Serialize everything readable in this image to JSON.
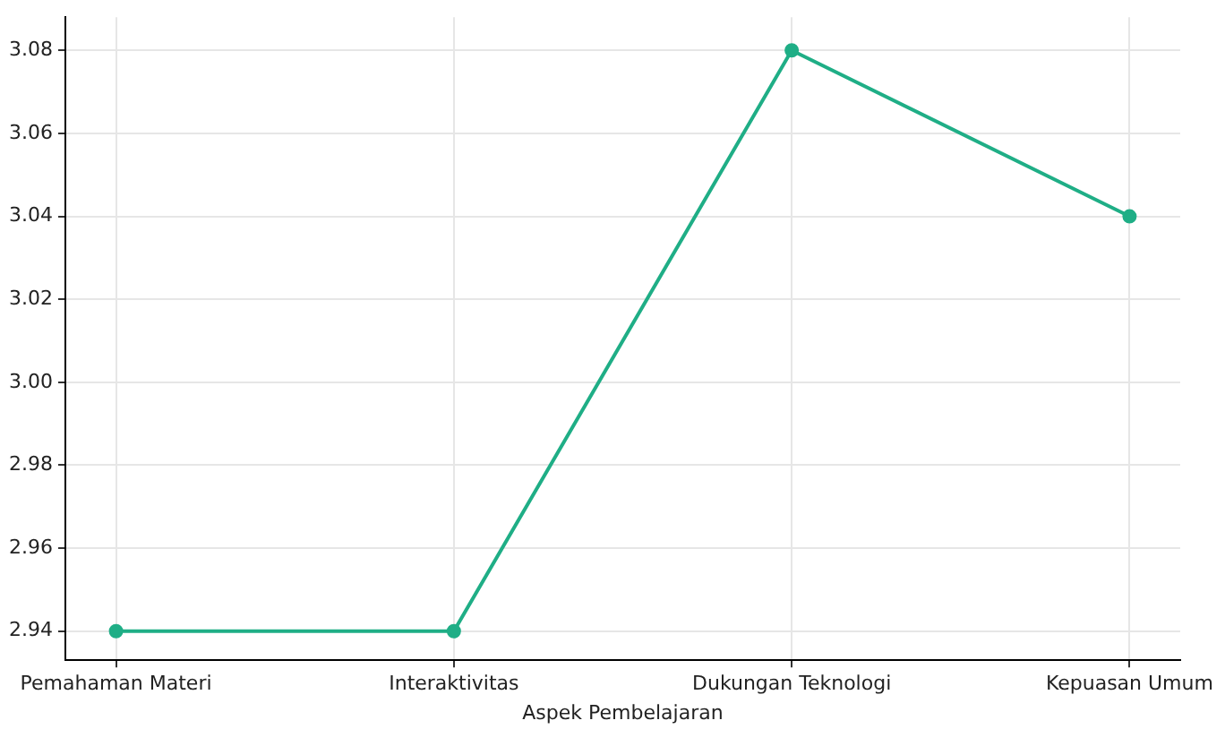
{
  "chart_data": {
    "type": "line",
    "xlabel": "Aspek Pembelajaran",
    "categories": [
      "Pemahaman Materi",
      "Interaktivitas",
      "Dukungan Teknologi",
      "Kepuasan Umum"
    ],
    "series": [
      {
        "color": "#1fae86",
        "values": [
          2.94,
          2.94,
          3.08,
          3.04
        ]
      }
    ],
    "ylim": [
      2.933,
      3.088
    ],
    "yticks": [
      2.94,
      2.96,
      2.98,
      {
        "value": 3.0,
        "label": "3.00"
      },
      3.02,
      3.04,
      3.06,
      3.08
    ],
    "grid": true,
    "legend": false,
    "marker": "circle",
    "line_style": "solid"
  }
}
